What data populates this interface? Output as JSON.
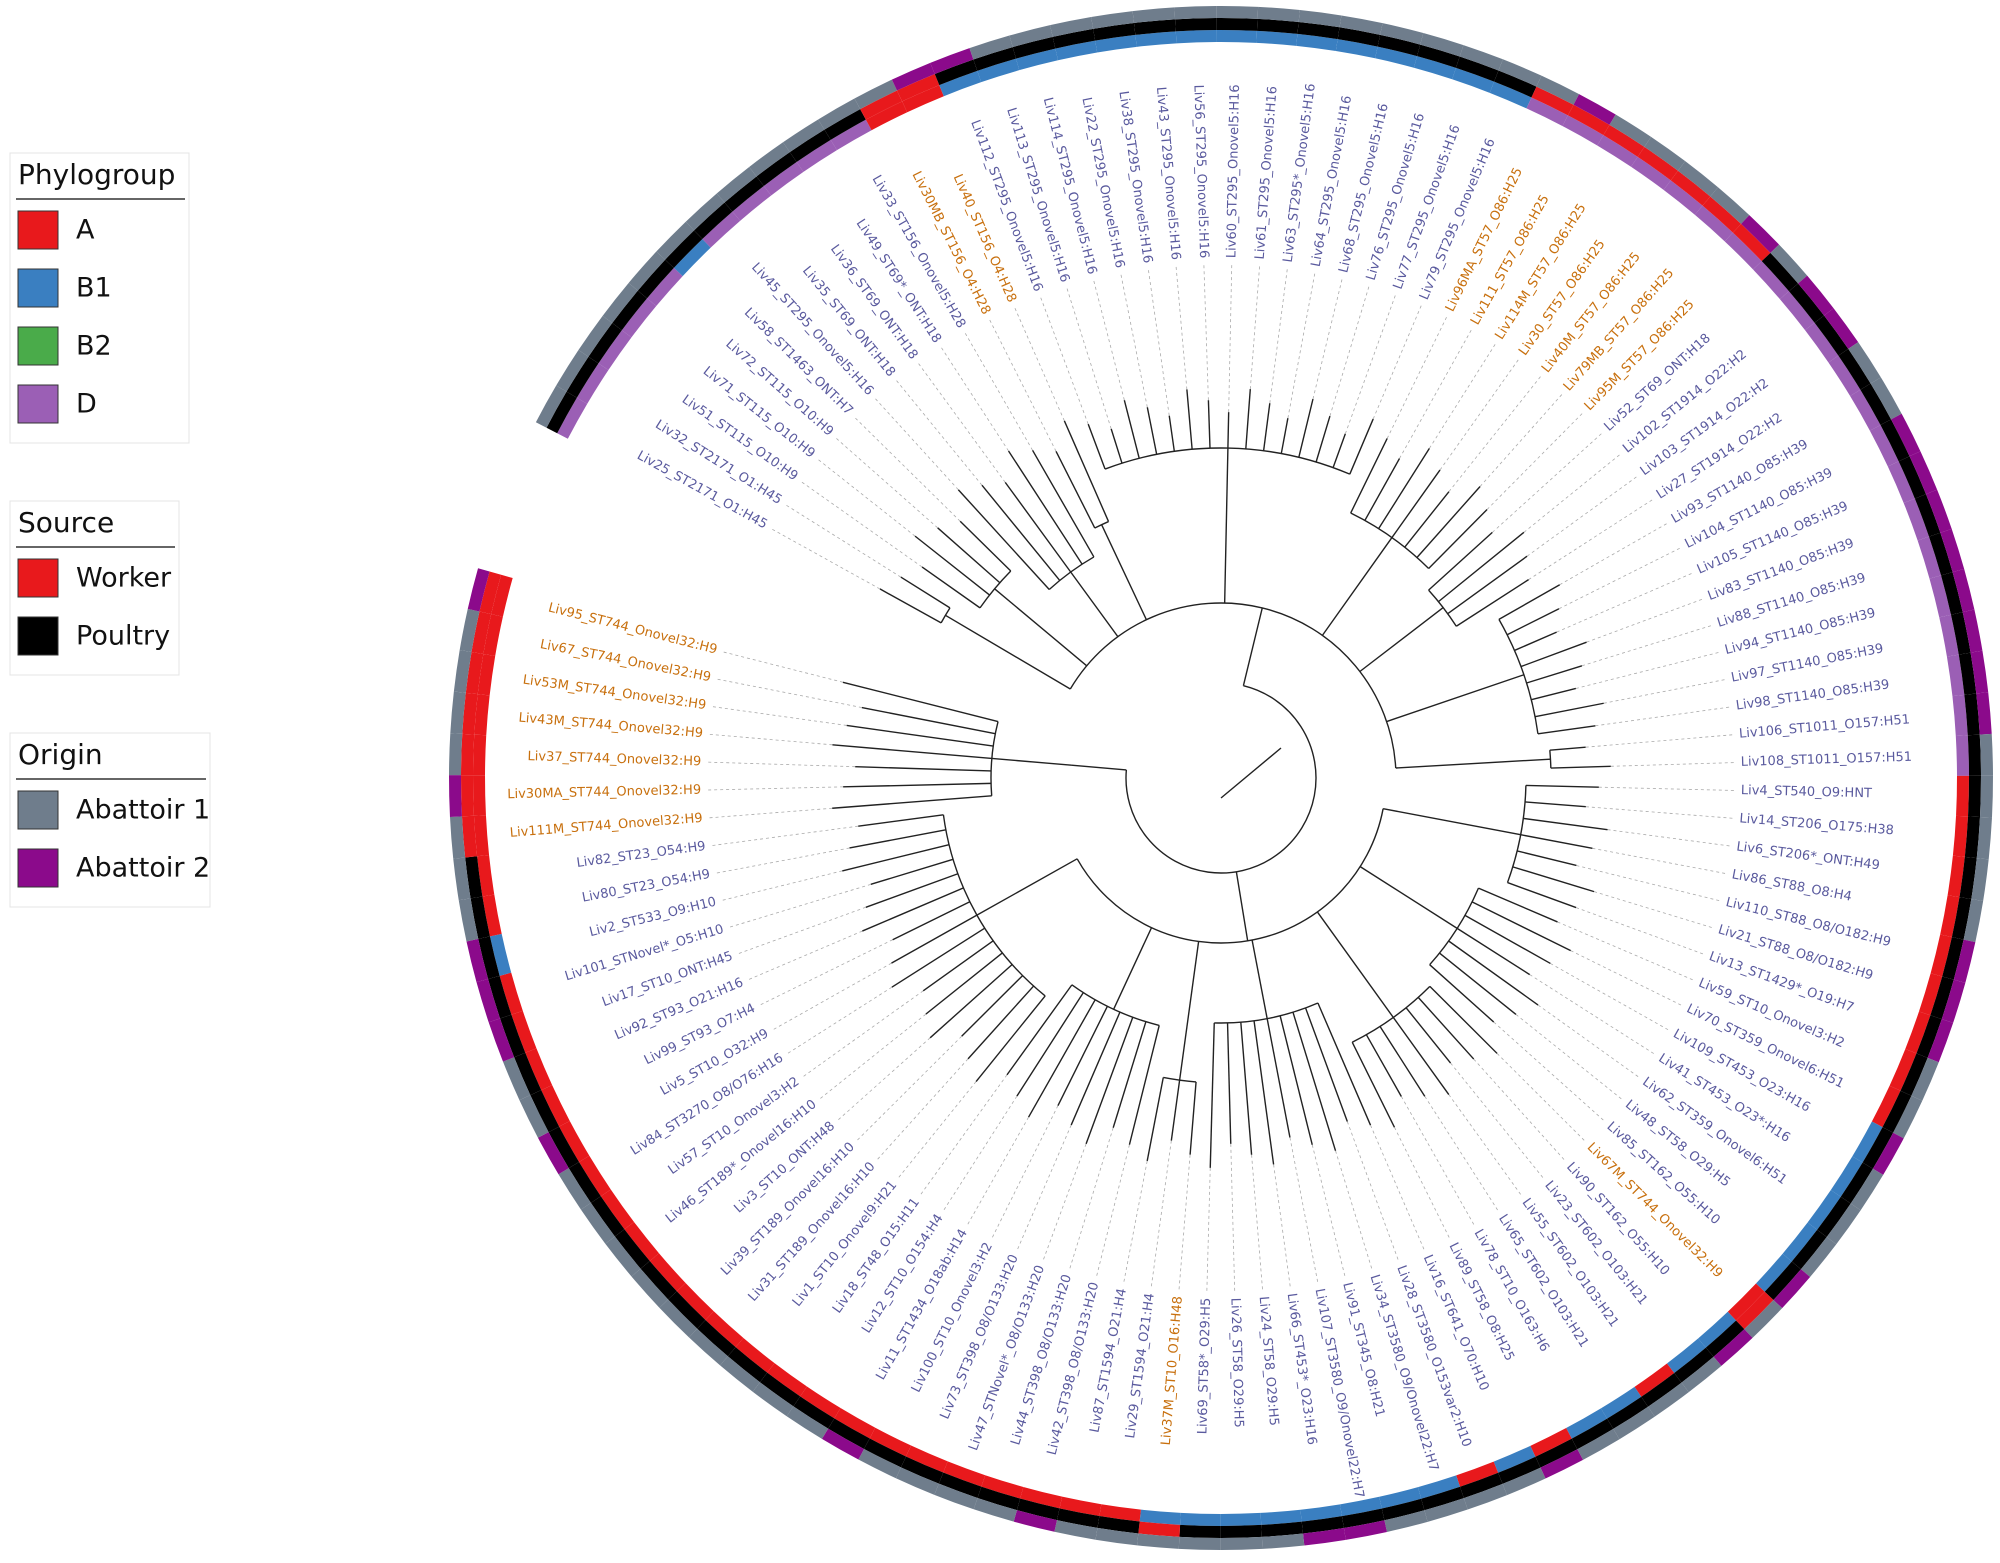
{
  "legends": [
    {
      "title": "Phylogroup",
      "items": [
        "A",
        "B1",
        "B2",
        "D"
      ]
    },
    {
      "title": "Source",
      "items": [
        "Worker",
        "Poultry"
      ]
    },
    {
      "title": "Origin",
      "items": [
        "Abattoir 1",
        "Abattoir 2"
      ]
    }
  ],
  "leaves": [
    "Liv25_ST2171_O1:H45",
    "Liv32_ST2171_O1:H45",
    "Liv51_ST115_O10:H9",
    "Liv71_ST115_O10:H9",
    "Liv72_ST115_O10:H9",
    "Liv58_ST1463_ONT:H7",
    "Liv45_ST295_Onovel5:H16",
    "Liv35_ST69_ONT:H18",
    "Liv36_ST69_ONT:H18",
    "Liv49_ST69*_ONT:H18",
    "Liv33_ST156_Onovel5:H28",
    "Liv30MB_ST156_O4:H28",
    "Liv40_ST156_O4:H28",
    "Liv112_ST295_Onovel5:H16",
    "Liv113_ST295_Onovel5:H16",
    "Liv114_ST295_Onovel5:H16",
    "Liv22_ST295_Onovel5:H16",
    "Liv38_ST295_Onovel5:H16",
    "Liv43_ST295_Onovel5:H16",
    "Liv56_ST295_Onovel5:H16",
    "Liv60_ST295_Onovel5:H16",
    "Liv61_ST295_Onovel5:H16",
    "Liv63_ST295*_Onovel5:H16",
    "Liv64_ST295_Onovel5:H16",
    "Liv68_ST295_Onovel5:H16",
    "Liv76_ST295_Onovel5:H16",
    "Liv77_ST295_Onovel5:H16",
    "Liv79_ST295_Onovel5:H16",
    "Liv96MA_ST57_O86:H25",
    "Liv111_ST57_O86:H25",
    "Liv114M_ST57_O86:H25",
    "Liv30_ST57_O86:H25",
    "Liv40M_ST57_O86:H25",
    "Liv79MB_ST57_O86:H25",
    "Liv95M_ST57_O86:H25",
    "Liv52_ST69_ONT:H18",
    "Liv102_ST1914_O22:H2",
    "Liv103_ST1914_O22:H2",
    "Liv27_ST1914_O22:H2",
    "Liv93_ST1140_O85:H39",
    "Liv104_ST1140_O85:H39",
    "Liv105_ST1140_O85:H39",
    "Liv83_ST1140_O85:H39",
    "Liv88_ST1140_O85:H39",
    "Liv94_ST1140_O85:H39",
    "Liv97_ST1140_O85:H39",
    "Liv98_ST1140_O85:H39",
    "Liv106_ST1011_O157:H51",
    "Liv108_ST1011_O157:H51",
    "Liv4_ST540_O9:HNT",
    "Liv14_ST206_O175:H38",
    "Liv6_ST206*_ONT:H49",
    "Liv86_ST88_O8:H4",
    "Liv110_ST88_O8/O182:H9",
    "Liv21_ST88_O8/O182:H9",
    "Liv13_ST1429*_O19:H7",
    "Liv59_ST10_Onovel3:H2",
    "Liv70_ST359_Onovel6:H51",
    "Liv109_ST453_O23:H16",
    "Liv41_ST453_O23*:H16",
    "Liv62_ST359_Onovel6:H51",
    "Liv48_ST58_O29:H5",
    "Liv85_ST162_O55:H10",
    "Liv67M_ST744_Onovel32:H9",
    "Liv90_ST162_O55:H10",
    "Liv23_ST602_O103:H21",
    "Liv55_ST602_O103:H21",
    "Liv65_ST602_O103:H21",
    "Liv78_ST10_O163:H6",
    "Liv89_ST58_O8:H25",
    "Liv16_ST641_O70:H10",
    "Liv28_ST3580_O153var2:H10",
    "Liv34_ST3580_O9/Onovel22:H7",
    "Liv91_ST345_O8:H21",
    "Liv107_ST3580_O9/Onovel22:H7",
    "Liv66_ST453*_O23:H16",
    "Liv24_ST58_O29:H5",
    "Liv26_ST58_O29:H5",
    "Liv69_ST58*_O29:H5",
    "Liv37M_ST10_O16:H48",
    "Liv29_ST1594_O21:H4",
    "Liv87_ST1594_O21:H4",
    "Liv42_ST398_O8/O133:H20",
    "Liv44_ST398_O8/O133:H20",
    "Liv47_STNovel*_O8/O133:H20",
    "Liv73_ST398_O8/O133:H20",
    "Liv100_ST10_Onovel3:H2",
    "Liv11_ST1434_O18ab:H14",
    "Liv12_ST10_O154:H4",
    "Liv18_ST48_O15:H11",
    "Liv1_ST10_Onovel9:H21",
    "Liv31_ST189_Onovel16:H10",
    "Liv39_ST189_Onovel16:H10",
    "Liv3_ST10_ONT:H48",
    "Liv46_ST189*_Onovel16:H10",
    "Liv57_ST10_Onovel3:H2",
    "Liv84_ST3270_O8/O76:H16",
    "Liv5_ST10_O32:H9",
    "Liv99_ST93_O7:H4",
    "Liv92_ST93_O21:H16",
    "Liv17_ST10_ONT:H45",
    "Liv101_STNovel*_O5:H10",
    "Liv2_ST533_O9:H10",
    "Liv80_ST23_O54:H9",
    "Liv82_ST23_O54:H9",
    "Liv111M_ST744_Onovel32:H9",
    "Liv30MA_ST744_Onovel32:H9",
    "Liv37_ST744_Onovel32:H9",
    "Liv43M_ST744_Onovel32:H9",
    "Liv53M_ST744_Onovel32:H9",
    "Liv67_ST744_Onovel32:H9",
    "Liv95_ST744_Onovel32:H9"
  ]
}
